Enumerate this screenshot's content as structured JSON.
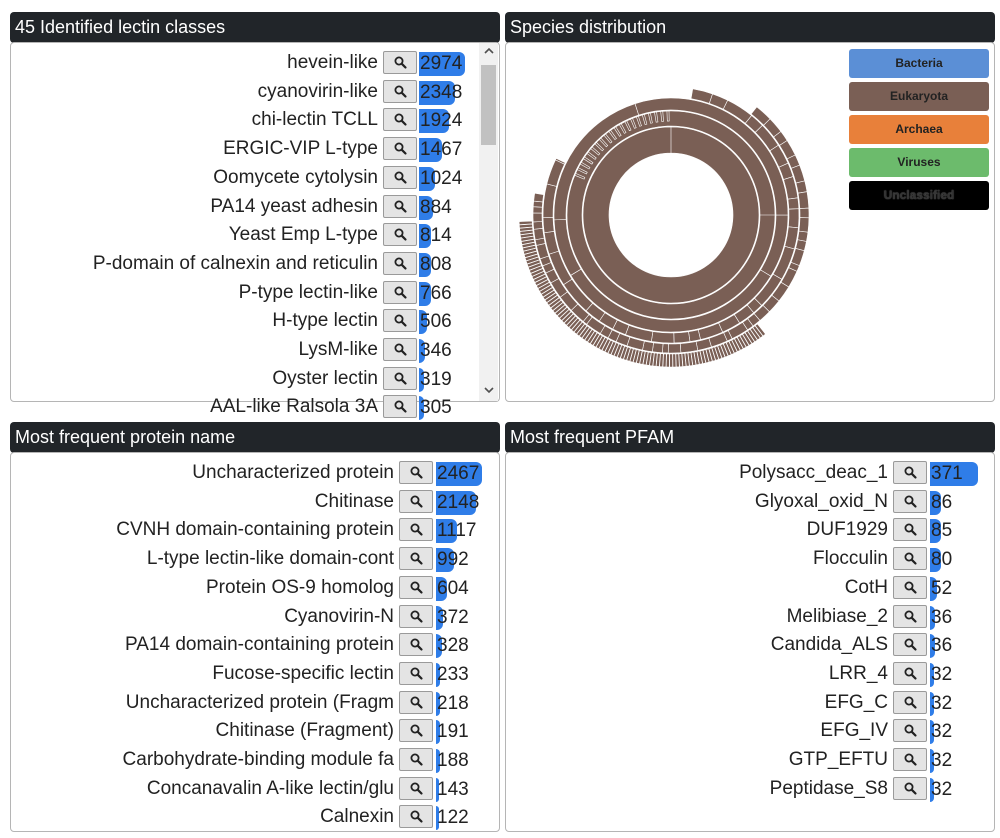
{
  "panels": {
    "lectin_title": "45 Identified lectin classes",
    "species_title": "Species distribution",
    "protein_title": "Most frequent protein name",
    "pfam_title": "Most frequent PFAM"
  },
  "lectin_classes": [
    {
      "label": "hevein-like",
      "value": "2974",
      "fraction": 1.0
    },
    {
      "label": "cyanovirin-like",
      "value": "2348",
      "fraction": 0.79
    },
    {
      "label": "chi-lectin TCLL",
      "value": "1924",
      "fraction": 0.65
    },
    {
      "label": "ERGIC-VIP L-type",
      "value": "1467",
      "fraction": 0.49
    },
    {
      "label": "Oomycete cytolysin",
      "value": "1024",
      "fraction": 0.34
    },
    {
      "label": "PA14 yeast adhesin",
      "value": "884",
      "fraction": 0.3
    },
    {
      "label": "Yeast Emp L-type",
      "value": "814",
      "fraction": 0.27
    },
    {
      "label": "P-domain of calnexin and reticulin",
      "value": "808",
      "fraction": 0.27
    },
    {
      "label": "P-type lectin-like",
      "value": "766",
      "fraction": 0.26
    },
    {
      "label": "H-type lectin",
      "value": "506",
      "fraction": 0.17
    },
    {
      "label": "LysM-like",
      "value": "346",
      "fraction": 0.12
    },
    {
      "label": "Oyster lectin",
      "value": "319",
      "fraction": 0.11
    },
    {
      "label": "AAL-like Ralsola 3A",
      "value": "305",
      "fraction": 0.1
    }
  ],
  "species_legend": [
    {
      "label": "Bacteria",
      "color": "#5b8fd6"
    },
    {
      "label": "Eukaryota",
      "color": "#7a5f55"
    },
    {
      "label": "Archaea",
      "color": "#e8803a"
    },
    {
      "label": "Viruses",
      "color": "#6cbb6c"
    },
    {
      "label": "Unclassified",
      "color": "#000000"
    }
  ],
  "protein_names": [
    {
      "label": "Uncharacterized protein",
      "value": "2467",
      "fraction": 1.0
    },
    {
      "label": "Chitinase",
      "value": "2148",
      "fraction": 0.87
    },
    {
      "label": "CVNH domain-containing protein",
      "value": "1117",
      "fraction": 0.45
    },
    {
      "label": "L-type lectin-like domain-cont",
      "value": "992",
      "fraction": 0.4
    },
    {
      "label": "Protein OS-9 homolog",
      "value": "604",
      "fraction": 0.24
    },
    {
      "label": "Cyanovirin-N",
      "value": "372",
      "fraction": 0.15
    },
    {
      "label": "PA14 domain-containing protein",
      "value": "328",
      "fraction": 0.13
    },
    {
      "label": "Fucose-specific lectin",
      "value": "233",
      "fraction": 0.09
    },
    {
      "label": "Uncharacterized protein (Fragm",
      "value": "218",
      "fraction": 0.09
    },
    {
      "label": "Chitinase (Fragment)",
      "value": "191",
      "fraction": 0.08
    },
    {
      "label": "Carbohydrate-binding module fa",
      "value": "188",
      "fraction": 0.08
    },
    {
      "label": "Concanavalin A-like lectin/glu",
      "value": "143",
      "fraction": 0.06
    },
    {
      "label": "Calnexin",
      "value": "122",
      "fraction": 0.05
    }
  ],
  "pfam": [
    {
      "label": "Polysacc_deac_1",
      "value": "371",
      "fraction": 1.0
    },
    {
      "label": "Glyoxal_oxid_N",
      "value": "86",
      "fraction": 0.23
    },
    {
      "label": "DUF1929",
      "value": "85",
      "fraction": 0.23
    },
    {
      "label": "Flocculin",
      "value": "80",
      "fraction": 0.22
    },
    {
      "label": "CotH",
      "value": "52",
      "fraction": 0.14
    },
    {
      "label": "Melibiase_2",
      "value": "36",
      "fraction": 0.1
    },
    {
      "label": "Candida_ALS",
      "value": "36",
      "fraction": 0.1
    },
    {
      "label": "LRR_4",
      "value": "32",
      "fraction": 0.09
    },
    {
      "label": "EFG_C",
      "value": "32",
      "fraction": 0.09
    },
    {
      "label": "EFG_IV",
      "value": "32",
      "fraction": 0.09
    },
    {
      "label": "GTP_EFTU",
      "value": "32",
      "fraction": 0.09
    },
    {
      "label": "Peptidase_S8",
      "value": "32",
      "fraction": 0.09
    }
  ],
  "icons": {
    "search": "search-icon",
    "scroll_up": "chevron-up-icon",
    "scroll_down": "chevron-down-icon"
  }
}
